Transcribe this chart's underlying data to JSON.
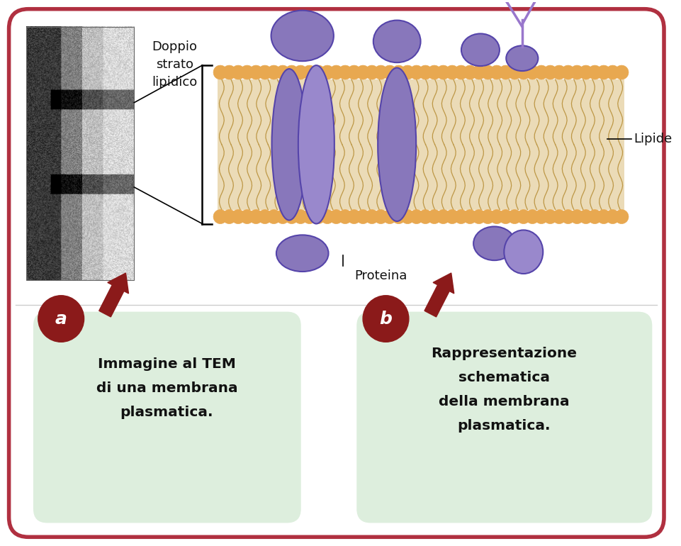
{
  "bg_color": "#ffffff",
  "border_color": "#b03040",
  "border_linewidth": 4,
  "label_doppio": "Doppio\nstrato\nlipidico",
  "label_lipide": "Lipide",
  "label_proteina": "Proteina",
  "label_a_text": "a",
  "label_b_text": "b",
  "box_a_text": "Immagine al TEM\ndi una membrana\nplasmatica.",
  "box_b_text": "Rappresentazione\nschematica\ndella membrana\nplasmatica.",
  "lipid_color": "#E8A850",
  "protein_color": "#8877BB",
  "protein_color2": "#9988CC",
  "tail_color": "#D4A840",
  "box_bg_color": "#ddeedd",
  "circle_color": "#8B1A1A",
  "arrow_color": "#8B1A1A",
  "text_color": "#111111",
  "label_color": "#111111"
}
